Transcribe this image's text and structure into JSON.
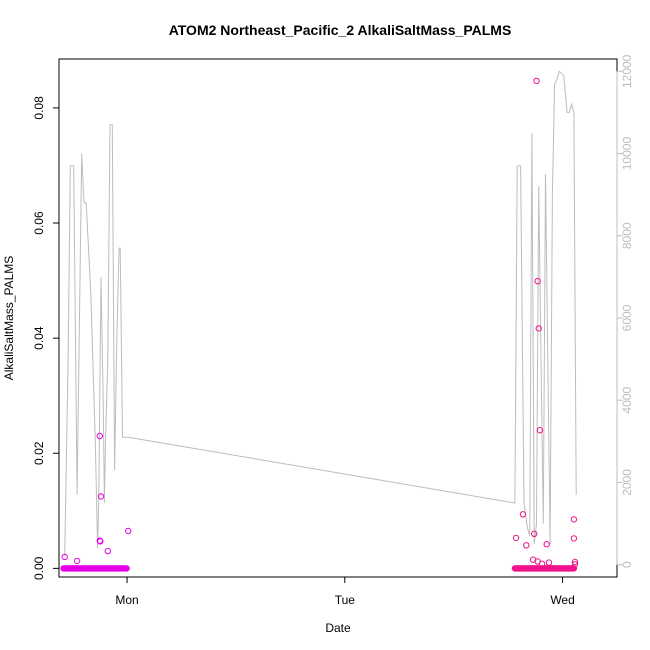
{
  "chart_data": {
    "type": "scatter",
    "title": "ATOM2 Northeast_Pacific_2 AlkaliSaltMass_PALMS",
    "xlabel": "Date",
    "ylabel": "AlkaliSaltMass_PALMS",
    "x_ticks": [
      "Mon",
      "Tue",
      "Wed"
    ],
    "x_range_hours": [
      -3.0,
      21.6
    ],
    "ylim_left": [
      -0.0015,
      0.0885
    ],
    "y_ticks_left": [
      "0.00",
      "0.02",
      "0.04",
      "0.06",
      "0.08"
    ],
    "ylim_right": [
      -300,
      12300
    ],
    "y_ticks_right": [
      "0",
      "2000",
      "4000",
      "6000",
      "8000",
      "10000",
      "12000"
    ],
    "colors": {
      "points_day1": "#e600e6",
      "points_day2": "#f0148c",
      "altitude_line": "#bdbdbd",
      "right_axis": "#bdbdbd"
    },
    "series": [
      {
        "values_axis": "left",
        "kind": "points",
        "color_key": "points_day1",
        "x_start": -2.8,
        "x_end": -0.02,
        "baseline_count": 90,
        "baseline_value": 0.0,
        "points": [
          {
            "x": -2.75,
            "y": 0.002
          },
          {
            "x": -2.2,
            "y": 0.0013
          },
          {
            "x": -1.2,
            "y": 0.023
          },
          {
            "x": -1.15,
            "y": 0.0125
          },
          {
            "x": -1.2,
            "y": 0.0048
          },
          {
            "x": -1.18,
            "y": 0.0047
          },
          {
            "x": -0.85,
            "y": 0.003
          },
          {
            "x": 0.05,
            "y": 0.0065
          }
        ]
      },
      {
        "values_axis": "left",
        "kind": "points",
        "color_key": "points_day2",
        "x_start": 17.1,
        "x_end": 19.7,
        "baseline_count": 90,
        "baseline_value": 0.0,
        "points": [
          {
            "x": 17.15,
            "y": 0.0053
          },
          {
            "x": 17.45,
            "y": 0.0094
          },
          {
            "x": 17.6,
            "y": 0.004
          },
          {
            "x": 17.9,
            "y": 0.0015
          },
          {
            "x": 17.95,
            "y": 0.006
          },
          {
            "x": 18.05,
            "y": 0.0847
          },
          {
            "x": 18.1,
            "y": 0.0499
          },
          {
            "x": 18.15,
            "y": 0.0417
          },
          {
            "x": 18.2,
            "y": 0.024
          },
          {
            "x": 18.1,
            "y": 0.0012
          },
          {
            "x": 18.3,
            "y": 0.0008
          },
          {
            "x": 18.5,
            "y": 0.0042
          },
          {
            "x": 18.6,
            "y": 0.001
          },
          {
            "x": 19.7,
            "y": 0.0085
          },
          {
            "x": 19.7,
            "y": 0.0052
          },
          {
            "x": 19.75,
            "y": 0.0011
          },
          {
            "x": 19.75,
            "y": 0.0007
          }
        ]
      },
      {
        "values_axis": "right",
        "kind": "line",
        "color_key": "altitude_line",
        "x": [
          -2.75,
          -2.6,
          -2.5,
          -2.35,
          -2.2,
          -2.0,
          -1.9,
          -1.8,
          -1.6,
          -1.4,
          -1.3,
          -1.25,
          -1.15,
          -1.05,
          -1.0,
          -0.95,
          -0.85,
          -0.75,
          -0.65,
          -0.55,
          -0.45,
          -0.35,
          -0.3,
          -0.2,
          -0.1,
          0.0,
          0.05,
          17.1,
          17.2,
          17.35,
          17.5,
          17.65,
          17.75,
          17.85,
          17.95,
          18.05,
          18.15,
          18.25,
          18.35,
          18.45,
          18.55,
          18.65,
          18.75,
          18.85,
          18.95,
          19.05,
          19.25,
          19.4,
          19.5,
          19.6,
          19.7,
          19.8
        ],
        "values": [
          200,
          5000,
          9700,
          9700,
          1700,
          10000,
          8800,
          8800,
          6600,
          3000,
          400,
          1500,
          7000,
          4000,
          1500,
          3000,
          5000,
          10700,
          10700,
          2300,
          5500,
          7700,
          7700,
          3100,
          3100,
          3100,
          3100,
          1500,
          9700,
          9700,
          1500,
          900,
          700,
          10500,
          500,
          1000,
          9200,
          5000,
          1000,
          9500,
          5000,
          500,
          9000,
          11700,
          11800,
          12000,
          11900,
          11000,
          11000,
          11200,
          11000,
          1700
        ]
      }
    ],
    "legend": "none",
    "grid": false
  }
}
